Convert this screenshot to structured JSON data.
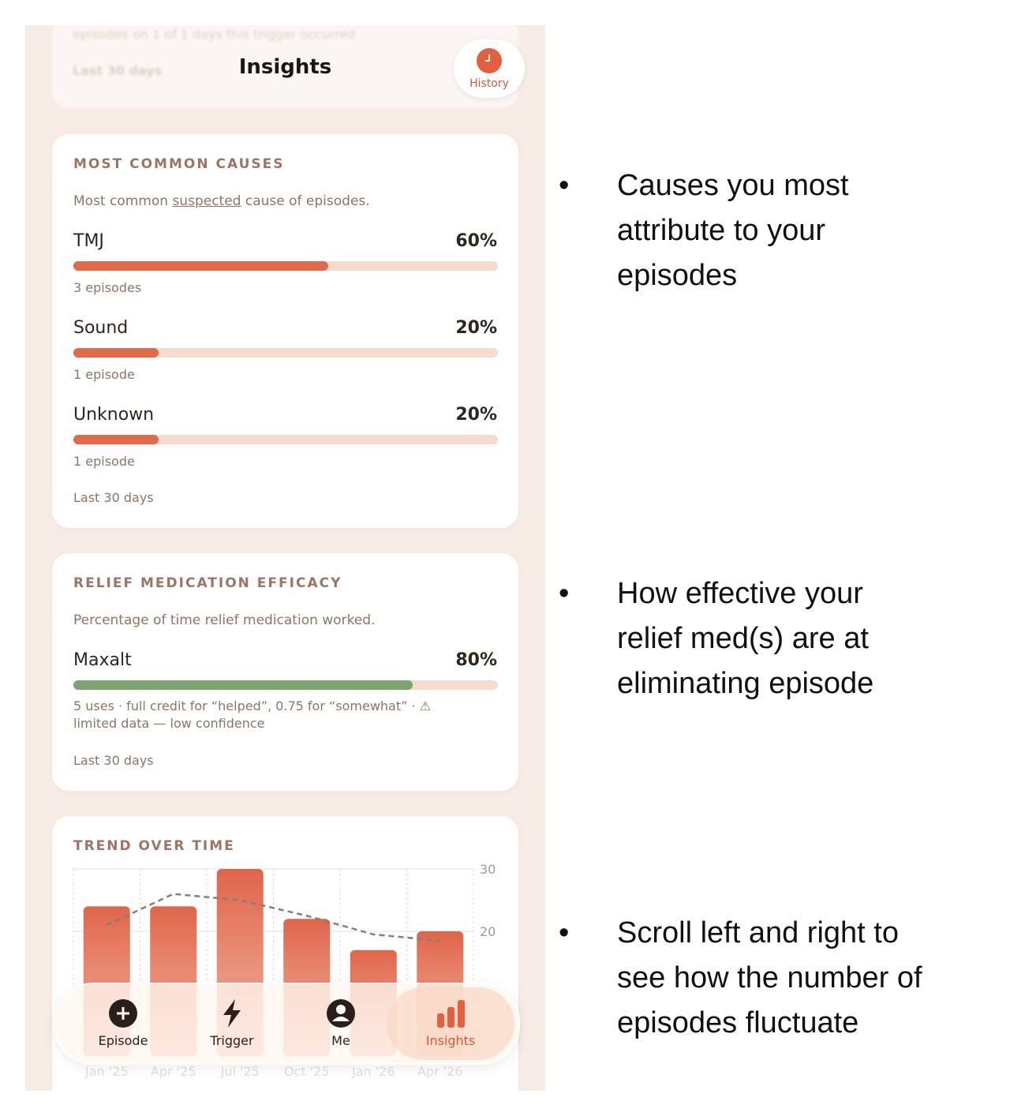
{
  "header": {
    "title": "Insights",
    "history": "History",
    "faded_lines": [
      "episodes on 1 of 1 days this trigger occurred",
      "Last 30 days"
    ]
  },
  "causes": {
    "title": "MOST COMMON CAUSES",
    "subtitle_pre": "Most common ",
    "subtitle_link": "suspected",
    "subtitle_post": " cause of episodes.",
    "items": [
      {
        "name": "TMJ",
        "percent": {
          "value": 60,
          "label": "60%"
        },
        "count": "3 episodes"
      },
      {
        "name": "Sound",
        "percent": {
          "value": 20,
          "label": "20%"
        },
        "count": "1 episode"
      },
      {
        "name": "Unknown",
        "percent": {
          "value": 20,
          "label": "20%"
        },
        "count": "1 episode"
      }
    ],
    "footer": "Last 30 days"
  },
  "relief": {
    "title": "RELIEF MEDICATION EFFICACY",
    "subtitle": "Percentage of time relief medication worked.",
    "items": [
      {
        "name": "Maxalt",
        "percent": {
          "value": 80,
          "label": "80%"
        },
        "note_lines": [
          "5 uses · full credit for “helped”, 0.75 for “somewhat” · ⚠",
          "limited data — low confidence"
        ]
      }
    ],
    "footer": "Last 30 days"
  },
  "trend": {
    "title": "TREND OVER TIME",
    "categories": [
      "Jan '25",
      "Apr '25",
      "Jul '25",
      "Oct '25",
      "Jan '26",
      "Apr '26"
    ],
    "bars": [
      24,
      24,
      30,
      22,
      17,
      20
    ],
    "line": [
      21,
      26,
      25,
      22.5,
      19.5,
      18.5
    ],
    "ylim": [
      0,
      30
    ],
    "yticks": [
      20,
      30
    ]
  },
  "nav": {
    "tabs": [
      {
        "label": "Episode"
      },
      {
        "label": "Trigger"
      },
      {
        "label": "Me"
      },
      {
        "label": "Insights"
      }
    ]
  },
  "annotations": [
    [
      "Causes you most",
      "attribute to your",
      "episodes"
    ],
    [
      "How effective your",
      "relief med(s) are at",
      "eliminating episode"
    ],
    [
      "Scroll left and right to",
      "see how the number of",
      "episodes fluctuate"
    ]
  ]
}
